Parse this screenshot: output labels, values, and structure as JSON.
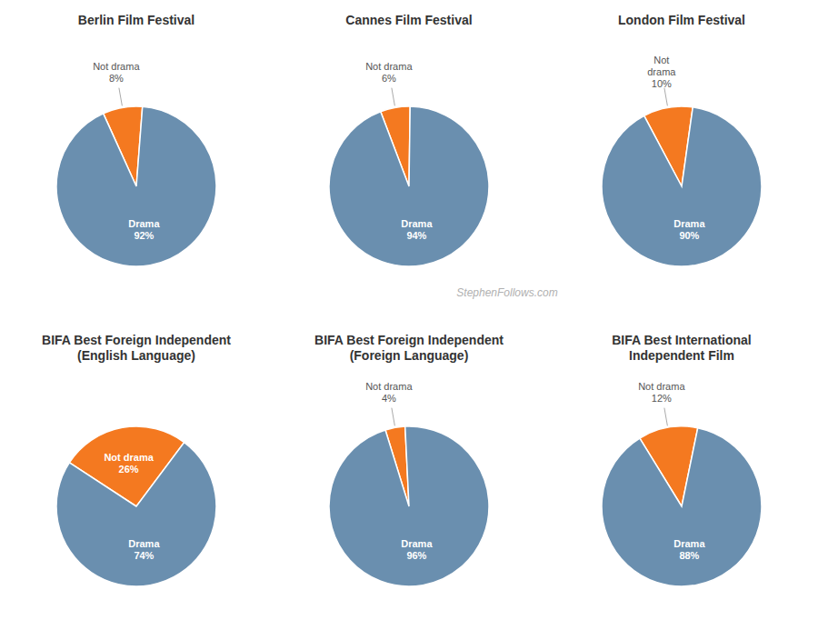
{
  "chart_data": [
    {
      "type": "pie",
      "title": "Berlin Film Festival",
      "categories": [
        "Not drama",
        "Drama"
      ],
      "values": [
        8,
        92
      ],
      "value_labels": [
        "8%",
        "92%"
      ],
      "colors": [
        "#f47920",
        "#6a8faf"
      ],
      "data_labels": true
    },
    {
      "type": "pie",
      "title": "Cannes Film Festival",
      "categories": [
        "Not drama",
        "Drama"
      ],
      "values": [
        6,
        94
      ],
      "value_labels": [
        "6%",
        "94%"
      ],
      "colors": [
        "#f47920",
        "#6a8faf"
      ],
      "data_labels": true
    },
    {
      "type": "pie",
      "title": "London Film Festival",
      "categories": [
        "Not\ndrama",
        "Drama"
      ],
      "values": [
        10,
        90
      ],
      "value_labels": [
        "10%",
        "90%"
      ],
      "colors": [
        "#f47920",
        "#6a8faf"
      ],
      "data_labels": true
    },
    {
      "type": "pie",
      "title": "BIFA Best Foreign Independent\n(English Language)",
      "categories": [
        "Not drama",
        "Drama"
      ],
      "values": [
        26,
        74
      ],
      "value_labels": [
        "26%",
        "74%"
      ],
      "colors": [
        "#f47920",
        "#6a8faf"
      ],
      "data_labels": true
    },
    {
      "type": "pie",
      "title": "BIFA Best Foreign Independent\n(Foreign Language)",
      "categories": [
        "Not drama",
        "Drama"
      ],
      "values": [
        4,
        96
      ],
      "value_labels": [
        "4%",
        "96%"
      ],
      "colors": [
        "#f47920",
        "#6a8faf"
      ],
      "data_labels": true,
      "annotations": [
        "StephenFollows.com"
      ]
    },
    {
      "type": "pie",
      "title": "BIFA Best International\nIndependent Film",
      "categories": [
        "Not drama",
        "Drama"
      ],
      "values": [
        12,
        88
      ],
      "value_labels": [
        "12%",
        "88%"
      ],
      "colors": [
        "#f47920",
        "#6a8faf"
      ],
      "data_labels": true
    }
  ]
}
